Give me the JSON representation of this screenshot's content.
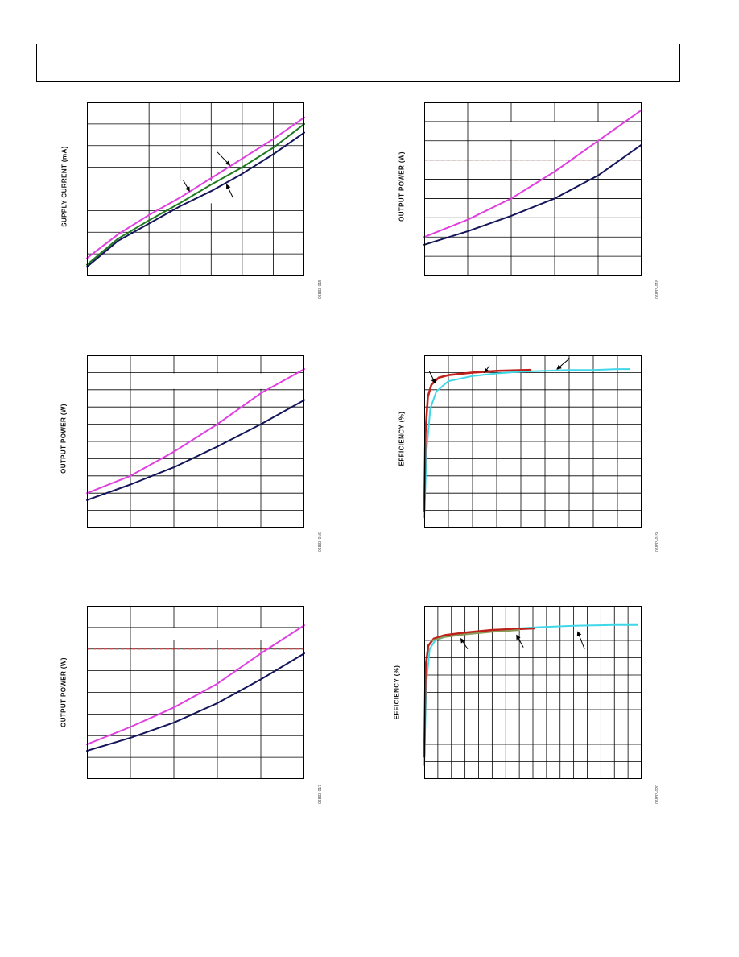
{
  "page": {
    "header_text": ""
  },
  "chart_data": [
    {
      "id": "p1",
      "type": "line",
      "ylabel": "SUPPLY CURRENT (mA)",
      "xlabel": "",
      "figure_id": "06833-015",
      "grid": true,
      "xlim": [
        0,
        7
      ],
      "ylim": [
        0,
        8
      ],
      "series": [
        {
          "color": "#e040e0",
          "x": [
            0,
            1,
            2,
            3,
            4,
            5,
            6,
            7
          ],
          "y": [
            0.8,
            1.9,
            2.8,
            3.6,
            4.5,
            5.4,
            6.3,
            7.3
          ]
        },
        {
          "color": "#1f7a1f",
          "x": [
            0,
            1,
            2,
            3,
            4,
            5,
            6,
            7
          ],
          "y": [
            0.5,
            1.7,
            2.55,
            3.35,
            4.2,
            5.0,
            5.9,
            7.0
          ]
        },
        {
          "color": "#14145a",
          "x": [
            0,
            1,
            2,
            3,
            4,
            5,
            6,
            7
          ],
          "y": [
            0.4,
            1.6,
            2.4,
            3.2,
            3.9,
            4.7,
            5.6,
            6.6
          ]
        }
      ],
      "annotations": [
        {
          "x1": 4.2,
          "y1": 5.7,
          "x2": 4.6,
          "y2": 5.1
        },
        {
          "x1": 3.1,
          "y1": 4.4,
          "x2": 3.3,
          "y2": 3.9
        },
        {
          "x1": 4.7,
          "y1": 3.6,
          "x2": 4.5,
          "y2": 4.2
        }
      ],
      "legend_box": {
        "x1": 2,
        "x2": 5,
        "y1": 4.4,
        "y2": 3.3
      }
    },
    {
      "id": "p2",
      "type": "line",
      "ylabel": "OUTPUT POWER (W)",
      "xlabel": "",
      "figure_id": "06833-018",
      "grid": true,
      "xlim": [
        0,
        5
      ],
      "ylim": [
        0,
        9
      ],
      "series": [
        {
          "color": "#e040e0",
          "x": [
            0,
            1,
            2,
            3,
            4,
            5
          ],
          "y": [
            2.0,
            2.9,
            4.0,
            5.4,
            7.0,
            8.6
          ]
        },
        {
          "color": "#14145a",
          "x": [
            0,
            1,
            2,
            3,
            4,
            5
          ],
          "y": [
            1.6,
            2.3,
            3.1,
            4.0,
            5.2,
            6.8
          ]
        }
      ],
      "threshold": {
        "color": "#cc2222",
        "y": 6.0
      },
      "legend_box": {
        "x1": 1,
        "x2": 5,
        "y1": 8.0,
        "y2": 7.0
      }
    },
    {
      "id": "p3",
      "type": "line",
      "ylabel": "OUTPUT POWER (W)",
      "xlabel": "",
      "figure_id": "06833-016",
      "grid": true,
      "xlim": [
        0,
        5
      ],
      "ylim": [
        0,
        10
      ],
      "series": [
        {
          "color": "#e040e0",
          "x": [
            0,
            1,
            2,
            3,
            4,
            5
          ],
          "y": [
            2.0,
            3.0,
            4.4,
            6.0,
            7.8,
            9.2
          ]
        },
        {
          "color": "#14145a",
          "x": [
            0,
            1,
            2,
            3,
            4,
            5
          ],
          "y": [
            1.6,
            2.5,
            3.5,
            4.7,
            6.0,
            7.4
          ]
        }
      ],
      "legend_box": {
        "x1": 1,
        "x2": 5,
        "y1": 9.0,
        "y2": 8.0
      }
    },
    {
      "id": "p4",
      "type": "line",
      "ylabel": "EFFICIENCY (%)",
      "xlabel": "",
      "figure_id": "06833-019",
      "grid": true,
      "xlim": [
        0,
        9
      ],
      "ylim": [
        0,
        10
      ],
      "series": [
        {
          "color": "#40d8e8",
          "x": [
            0,
            0.1,
            0.25,
            0.5,
            1,
            2,
            3,
            4,
            5,
            6,
            7,
            8,
            8.5
          ],
          "y": [
            0.6,
            4.5,
            6.9,
            7.9,
            8.5,
            8.8,
            8.95,
            9.05,
            9.1,
            9.15,
            9.15,
            9.2,
            9.2
          ]
        },
        {
          "color": "#c0201a",
          "x": [
            0,
            0.05,
            0.15,
            0.3,
            0.6,
            1,
            2,
            3,
            4.4
          ],
          "y": [
            1.0,
            5.5,
            7.6,
            8.3,
            8.7,
            8.85,
            9.0,
            9.1,
            9.15
          ]
        }
      ],
      "annotations": [
        {
          "x1": 2.7,
          "y1": 9.4,
          "x2": 2.5,
          "y2": 9.0
        },
        {
          "x1": 6.0,
          "y1": 9.8,
          "x2": 5.5,
          "y2": 9.2
        },
        {
          "x1": 0.2,
          "y1": 9.1,
          "x2": 0.45,
          "y2": 8.4
        }
      ],
      "legend_box": {
        "x1": 7,
        "x2": 8,
        "y1": 1.0,
        "y2": 1.0
      }
    },
    {
      "id": "p5",
      "type": "line",
      "ylabel": "OUTPUT POWER (W)",
      "xlabel": "",
      "figure_id": "06833-017",
      "grid": true,
      "xlim": [
        0,
        5
      ],
      "ylim": [
        0,
        8
      ],
      "series": [
        {
          "color": "#e040e0",
          "x": [
            0,
            1,
            2,
            3,
            4,
            5
          ],
          "y": [
            1.6,
            2.4,
            3.3,
            4.4,
            5.8,
            7.1
          ]
        },
        {
          "color": "#14145a",
          "x": [
            0,
            1,
            2,
            3,
            4,
            5
          ],
          "y": [
            1.3,
            1.9,
            2.6,
            3.5,
            4.6,
            5.8
          ]
        }
      ],
      "threshold": {
        "color": "#cc2222",
        "y": 6.0
      },
      "legend_box": {
        "x1": 1,
        "x2": 5,
        "y1": 7.0,
        "y2": 6.4
      }
    },
    {
      "id": "p6",
      "type": "line",
      "ylabel": "EFFICIENCY (%)",
      "xlabel": "",
      "figure_id": "06833-020",
      "grid": true,
      "xlim": [
        0,
        16
      ],
      "ylim": [
        0,
        10
      ],
      "series": [
        {
          "color": "#40d8e8",
          "x": [
            0,
            0.15,
            0.4,
            0.8,
            1.5,
            3,
            5,
            8,
            11,
            14,
            15.7
          ],
          "y": [
            0.8,
            5.5,
            7.5,
            8.0,
            8.2,
            8.4,
            8.6,
            8.75,
            8.85,
            8.9,
            8.9
          ]
        },
        {
          "color": "#c0201a",
          "x": [
            0,
            0.1,
            0.3,
            0.7,
            1.5,
            3,
            5,
            8.1
          ],
          "y": [
            1.3,
            6.5,
            7.7,
            8.1,
            8.3,
            8.45,
            8.6,
            8.7
          ]
        },
        {
          "color": "#8a9a5a",
          "x": [
            0.6,
            1.5,
            3,
            5,
            7
          ],
          "y": [
            8.0,
            8.2,
            8.35,
            8.5,
            8.6
          ]
        }
      ],
      "annotations": [
        {
          "x1": 3.2,
          "y1": 7.5,
          "x2": 2.7,
          "y2": 8.1
        },
        {
          "x1": 7.3,
          "y1": 7.6,
          "x2": 6.8,
          "y2": 8.3
        },
        {
          "x1": 11.8,
          "y1": 7.5,
          "x2": 11.3,
          "y2": 8.5
        }
      ],
      "legend_box": {
        "x1": 12,
        "x2": 15,
        "y1": 1.0,
        "y2": 1.0
      }
    }
  ]
}
